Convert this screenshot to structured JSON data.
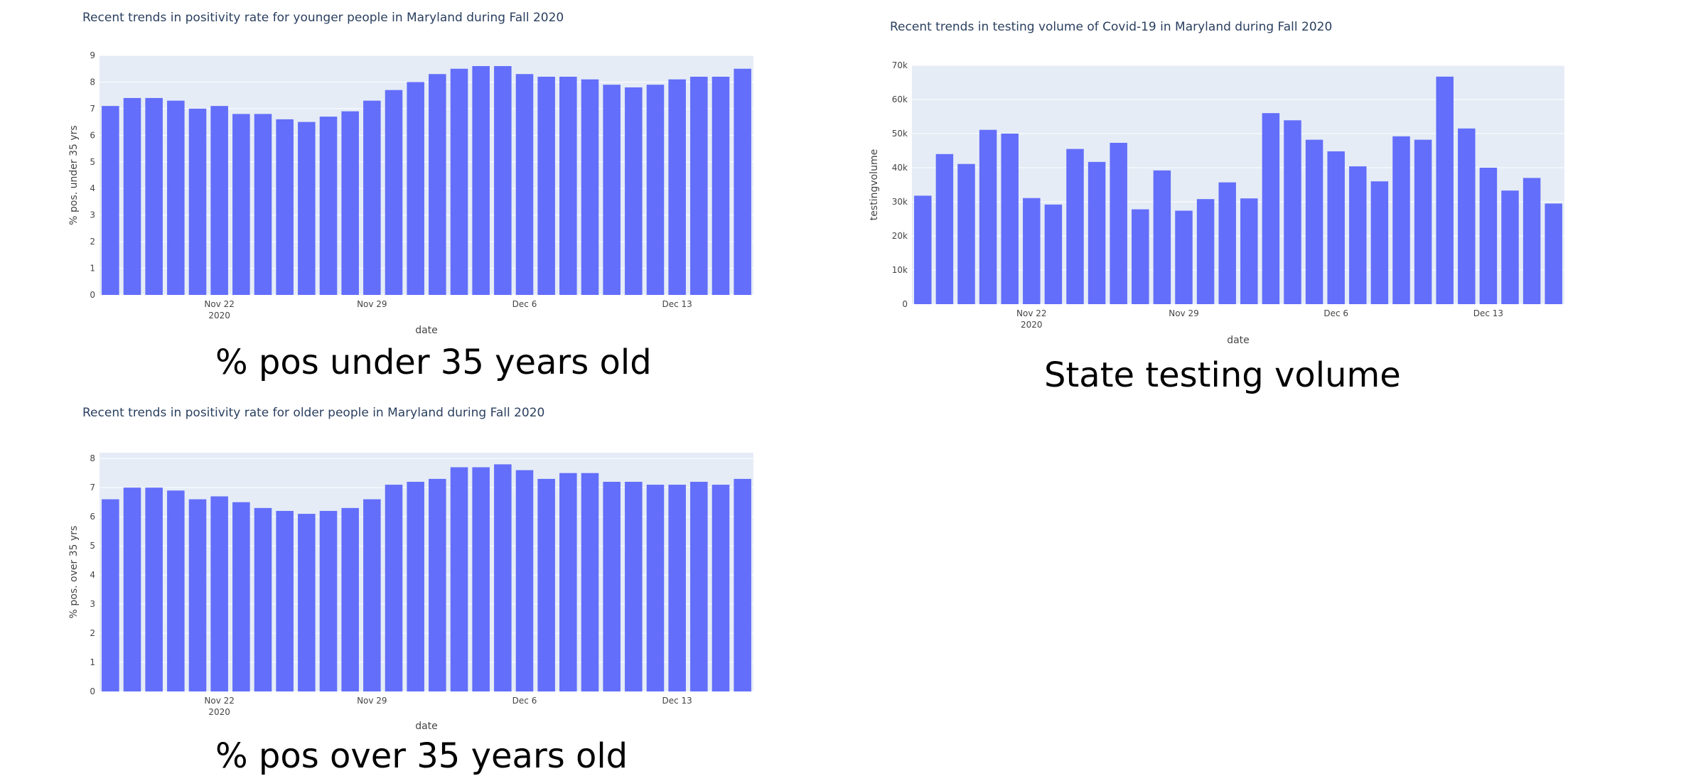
{
  "colors": {
    "bar": "#636efa",
    "plot_bg": "#e5ecf6",
    "grid": "#ffffff",
    "text": "#2a3f5f"
  },
  "captions": {
    "young": "% pos under 35 years old",
    "testing": "State testing volume",
    "old": "% pos over 35 years old"
  },
  "chart_data": [
    {
      "id": "young",
      "type": "bar",
      "title": "Recent trends in positivity rate for younger people in Maryland during Fall 2020",
      "xlabel": "date",
      "ylabel": "% pos. under 35 yrs",
      "ylim": [
        0,
        9
      ],
      "yticks": [
        {
          "v": 0,
          "label": "0"
        },
        {
          "v": 1,
          "label": "1"
        },
        {
          "v": 2,
          "label": "2"
        },
        {
          "v": 3,
          "label": "3"
        },
        {
          "v": 4,
          "label": "4"
        },
        {
          "v": 5,
          "label": "5"
        },
        {
          "v": 6,
          "label": "6"
        },
        {
          "v": 7,
          "label": "7"
        },
        {
          "v": 8,
          "label": "8"
        },
        {
          "v": 9,
          "label": "9"
        }
      ],
      "x": [
        "2020-11-17",
        "2020-11-18",
        "2020-11-19",
        "2020-11-20",
        "2020-11-21",
        "2020-11-22",
        "2020-11-23",
        "2020-11-24",
        "2020-11-25",
        "2020-11-26",
        "2020-11-27",
        "2020-11-28",
        "2020-11-29",
        "2020-11-30",
        "2020-12-01",
        "2020-12-02",
        "2020-12-03",
        "2020-12-04",
        "2020-12-05",
        "2020-12-06",
        "2020-12-07",
        "2020-12-08",
        "2020-12-09",
        "2020-12-10",
        "2020-12-11",
        "2020-12-12",
        "2020-12-13",
        "2020-12-14",
        "2020-12-15",
        "2020-12-16"
      ],
      "values": [
        7.1,
        7.4,
        7.4,
        7.3,
        7.0,
        7.1,
        6.8,
        6.8,
        6.6,
        6.5,
        6.7,
        6.9,
        7.3,
        7.7,
        8.0,
        8.3,
        8.5,
        8.6,
        8.6,
        8.3,
        8.2,
        8.2,
        8.1,
        7.9,
        7.8,
        7.9,
        8.1,
        8.2,
        8.2,
        8.5
      ],
      "xticks": [
        {
          "label": "Nov 22",
          "sub": "2020",
          "index": 5
        },
        {
          "label": "Nov 29",
          "sub": "",
          "index": 12
        },
        {
          "label": "Dec 6",
          "sub": "",
          "index": 19
        },
        {
          "label": "Dec 13",
          "sub": "",
          "index": 26
        }
      ]
    },
    {
      "id": "testing",
      "type": "bar",
      "title": "Recent trends in testing volume of Covid-19 in Maryland during Fall 2020",
      "xlabel": "date",
      "ylabel": "testingvolume",
      "ylim": [
        0,
        70000
      ],
      "yticks": [
        {
          "v": 0,
          "label": "0"
        },
        {
          "v": 10000,
          "label": "10k"
        },
        {
          "v": 20000,
          "label": "20k"
        },
        {
          "v": 30000,
          "label": "30k"
        },
        {
          "v": 40000,
          "label": "40k"
        },
        {
          "v": 50000,
          "label": "50k"
        },
        {
          "v": 60000,
          "label": "60k"
        },
        {
          "v": 70000,
          "label": "70k"
        }
      ],
      "x": [
        "2020-11-17",
        "2020-11-18",
        "2020-11-19",
        "2020-11-20",
        "2020-11-21",
        "2020-11-22",
        "2020-11-23",
        "2020-11-24",
        "2020-11-25",
        "2020-11-26",
        "2020-11-27",
        "2020-11-28",
        "2020-11-29",
        "2020-11-30",
        "2020-12-01",
        "2020-12-02",
        "2020-12-03",
        "2020-12-04",
        "2020-12-05",
        "2020-12-06",
        "2020-12-07",
        "2020-12-08",
        "2020-12-09",
        "2020-12-10",
        "2020-12-11",
        "2020-12-12",
        "2020-12-13",
        "2020-12-14",
        "2020-12-15",
        "2020-12-16"
      ],
      "values": [
        31800,
        44000,
        41100,
        51100,
        50000,
        31100,
        29200,
        45500,
        41700,
        47300,
        27800,
        39200,
        27400,
        30800,
        35700,
        31000,
        56000,
        53900,
        48200,
        44800,
        40400,
        36000,
        49200,
        48200,
        66700,
        51500,
        40000,
        33300,
        37000,
        29500
      ],
      "xticks": [
        {
          "label": "Nov 22",
          "sub": "2020",
          "index": 5
        },
        {
          "label": "Nov 29",
          "sub": "",
          "index": 12
        },
        {
          "label": "Dec 6",
          "sub": "",
          "index": 19
        },
        {
          "label": "Dec 13",
          "sub": "",
          "index": 26
        }
      ]
    },
    {
      "id": "old",
      "type": "bar",
      "title": "Recent trends in positivity rate for older people in Maryland during Fall 2020",
      "xlabel": "date",
      "ylabel": "% pos. over 35 yrs",
      "ylim": [
        0,
        8.2
      ],
      "yticks": [
        {
          "v": 0,
          "label": "0"
        },
        {
          "v": 1,
          "label": "1"
        },
        {
          "v": 2,
          "label": "2"
        },
        {
          "v": 3,
          "label": "3"
        },
        {
          "v": 4,
          "label": "4"
        },
        {
          "v": 5,
          "label": "5"
        },
        {
          "v": 6,
          "label": "6"
        },
        {
          "v": 7,
          "label": "7"
        },
        {
          "v": 8,
          "label": "8"
        }
      ],
      "x": [
        "2020-11-17",
        "2020-11-18",
        "2020-11-19",
        "2020-11-20",
        "2020-11-21",
        "2020-11-22",
        "2020-11-23",
        "2020-11-24",
        "2020-11-25",
        "2020-11-26",
        "2020-11-27",
        "2020-11-28",
        "2020-11-29",
        "2020-11-30",
        "2020-12-01",
        "2020-12-02",
        "2020-12-03",
        "2020-12-04",
        "2020-12-05",
        "2020-12-06",
        "2020-12-07",
        "2020-12-08",
        "2020-12-09",
        "2020-12-10",
        "2020-12-11",
        "2020-12-12",
        "2020-12-13",
        "2020-12-14",
        "2020-12-15",
        "2020-12-16"
      ],
      "values": [
        6.6,
        7.0,
        7.0,
        6.9,
        6.6,
        6.7,
        6.5,
        6.3,
        6.2,
        6.1,
        6.2,
        6.3,
        6.6,
        7.1,
        7.2,
        7.3,
        7.7,
        7.7,
        7.8,
        7.6,
        7.3,
        7.5,
        7.5,
        7.2,
        7.2,
        7.1,
        7.1,
        7.2,
        7.1,
        7.3
      ],
      "xticks": [
        {
          "label": "Nov 22",
          "sub": "2020",
          "index": 5
        },
        {
          "label": "Nov 29",
          "sub": "",
          "index": 12
        },
        {
          "label": "Dec 6",
          "sub": "",
          "index": 19
        },
        {
          "label": "Dec 13",
          "sub": "",
          "index": 26
        }
      ]
    }
  ]
}
